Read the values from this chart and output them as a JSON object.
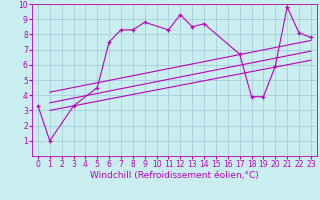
{
  "x_data": [
    0,
    1,
    3,
    5,
    6,
    7,
    8,
    9,
    11,
    12,
    13,
    14,
    17,
    18,
    19,
    20,
    21,
    22,
    23
  ],
  "y_data": [
    3.3,
    1.0,
    3.3,
    4.5,
    7.5,
    8.3,
    8.3,
    8.8,
    8.3,
    9.3,
    8.5,
    8.7,
    6.7,
    3.9,
    3.9,
    5.9,
    9.8,
    8.1,
    7.8
  ],
  "trend1_x": [
    1,
    23
  ],
  "trend1_y": [
    3.0,
    6.3
  ],
  "trend2_x": [
    1,
    23
  ],
  "trend2_y": [
    3.5,
    6.9
  ],
  "trend3_x": [
    1,
    23
  ],
  "trend3_y": [
    4.2,
    7.6
  ],
  "line_color": "#bb00bb",
  "bg_color": "#c8eef0",
  "grid_color": "#a0c8d8",
  "xlabel": "Windchill (Refroidissement éolien,°C)",
  "xlim": [
    -0.5,
    23.5
  ],
  "ylim": [
    0,
    10
  ],
  "xticks": [
    0,
    1,
    2,
    3,
    4,
    5,
    6,
    7,
    8,
    9,
    10,
    11,
    12,
    13,
    14,
    15,
    16,
    17,
    18,
    19,
    20,
    21,
    22,
    23
  ],
  "yticks": [
    1,
    2,
    3,
    4,
    5,
    6,
    7,
    8,
    9,
    10
  ],
  "tick_fontsize": 5.5,
  "xlabel_fontsize": 6.5
}
